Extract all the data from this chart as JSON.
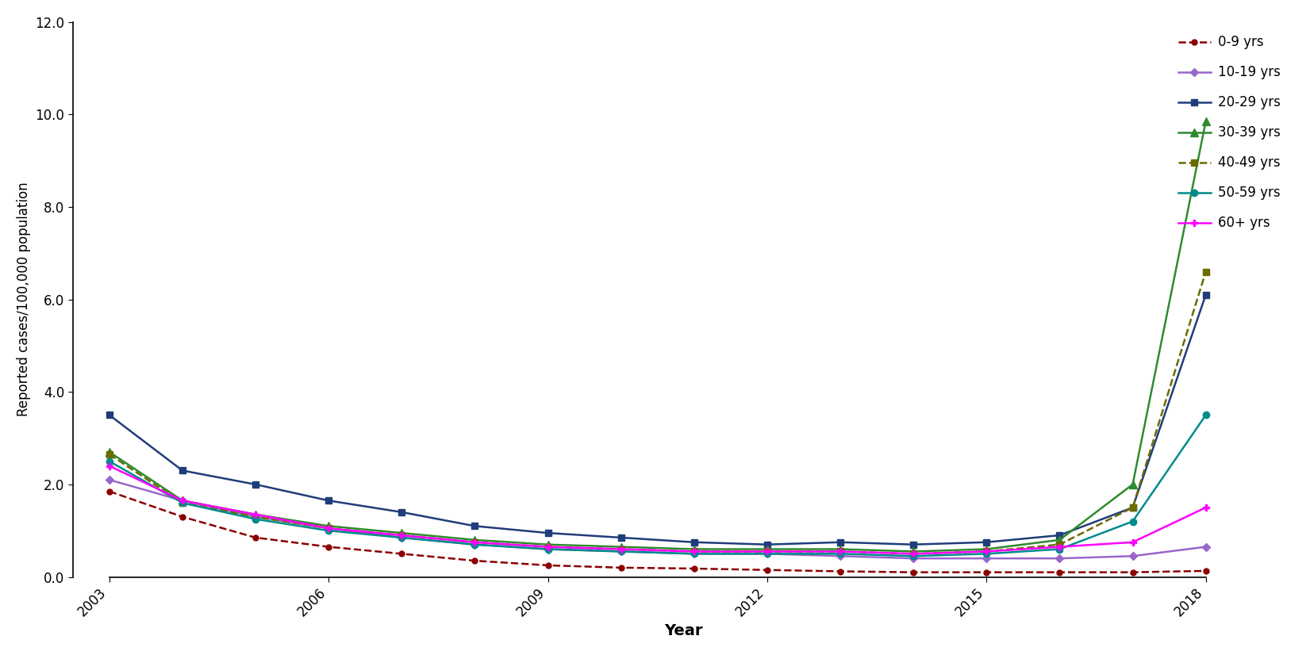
{
  "years": [
    2003,
    2004,
    2005,
    2006,
    2007,
    2008,
    2009,
    2010,
    2011,
    2012,
    2013,
    2014,
    2015,
    2016,
    2017,
    2018
  ],
  "series": {
    "0-9 yrs": {
      "values": [
        1.85,
        1.3,
        0.85,
        0.65,
        0.5,
        0.35,
        0.25,
        0.2,
        0.18,
        0.15,
        0.12,
        0.1,
        0.1,
        0.1,
        0.1,
        0.13
      ],
      "color": "#8B0000",
      "linestyle": "--",
      "marker": "o",
      "markersize": 5
    },
    "10-19 yrs": {
      "values": [
        2.1,
        1.65,
        1.3,
        1.05,
        0.85,
        0.7,
        0.6,
        0.55,
        0.5,
        0.5,
        0.45,
        0.4,
        0.4,
        0.4,
        0.45,
        0.65
      ],
      "color": "#9966CC",
      "linestyle": "-",
      "marker": "D",
      "markersize": 5
    },
    "20-29 yrs": {
      "values": [
        3.5,
        2.3,
        2.0,
        1.65,
        1.4,
        1.1,
        0.95,
        0.85,
        0.75,
        0.7,
        0.75,
        0.7,
        0.75,
        0.9,
        1.5,
        6.1
      ],
      "color": "#1F3D7A",
      "linestyle": "-",
      "marker": "s",
      "markersize": 6
    },
    "30-39 yrs": {
      "values": [
        2.7,
        1.65,
        1.35,
        1.1,
        0.95,
        0.8,
        0.7,
        0.65,
        0.6,
        0.6,
        0.6,
        0.55,
        0.6,
        0.8,
        2.0,
        9.85
      ],
      "color": "#2E8B2E",
      "linestyle": "-",
      "marker": "^",
      "markersize": 7
    },
    "40-49 yrs": {
      "values": [
        2.65,
        1.6,
        1.3,
        1.05,
        0.9,
        0.75,
        0.65,
        0.6,
        0.55,
        0.55,
        0.55,
        0.5,
        0.55,
        0.7,
        1.5,
        6.6
      ],
      "color": "#6B6B00",
      "linestyle": "--",
      "marker": "s",
      "markersize": 6
    },
    "50-59 yrs": {
      "values": [
        2.5,
        1.6,
        1.25,
        1.0,
        0.85,
        0.7,
        0.6,
        0.55,
        0.5,
        0.5,
        0.5,
        0.45,
        0.5,
        0.6,
        1.2,
        3.5
      ],
      "color": "#008B8B",
      "linestyle": "-",
      "marker": "o",
      "markersize": 6
    },
    "60+ yrs": {
      "values": [
        2.4,
        1.65,
        1.35,
        1.05,
        0.9,
        0.75,
        0.65,
        0.6,
        0.55,
        0.55,
        0.55,
        0.5,
        0.55,
        0.65,
        0.75,
        1.5
      ],
      "color": "#FF00FF",
      "linestyle": "-",
      "marker": "P",
      "markersize": 6
    }
  },
  "title": "",
  "xlabel": "Year",
  "ylabel": "Reported cases/100,000 population",
  "ylim": [
    0,
    12.0
  ],
  "yticks": [
    0.0,
    2.0,
    4.0,
    6.0,
    8.0,
    10.0,
    12.0
  ],
  "xlim": [
    2002.5,
    2019.2
  ],
  "xticks": [
    2003,
    2006,
    2009,
    2012,
    2015,
    2018
  ],
  "background_color": "#ffffff",
  "legend_loc": "upper right",
  "figsize": [
    16.51,
    8.26
  ],
  "dpi": 100
}
